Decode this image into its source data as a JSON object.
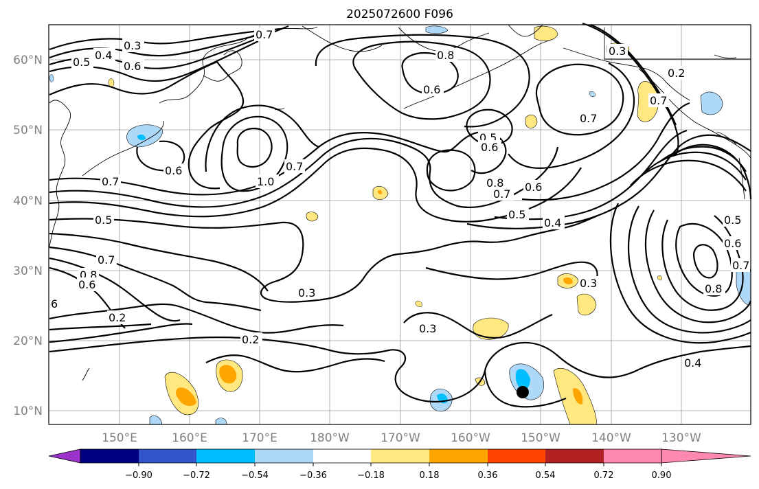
{
  "title": "2025072600 F096",
  "lat_labels": [
    "60°N",
    "50°N",
    "40°N",
    "30°N",
    "20°N",
    "10°N"
  ],
  "lon_labels": [
    "150°E",
    "160°E",
    "170°E",
    "180°W",
    "170°W",
    "160°W",
    "150°W",
    "140°W",
    "130°W"
  ],
  "colorbar": {
    "ticks": [
      "−0.90",
      "−0.72",
      "−0.54",
      "−0.36",
      "−0.18",
      "0.18",
      "0.36",
      "0.54",
      "0.72",
      "0.90"
    ],
    "colors": [
      "#9933cc",
      "#000080",
      "#3355cc",
      "#00bfff",
      "#add8f8",
      "#ffffff",
      "#ffe880",
      "#ffa500",
      "#ff4500",
      "#b22222",
      "#ff88b0"
    ]
  },
  "contour_labels": [
    "0.3",
    "0.4",
    "0.5",
    "0.6",
    "0.7",
    "0.7",
    "1.0",
    "0.6",
    "0.7",
    "0.5",
    "0.6",
    "0.6",
    "0.8",
    "0.7",
    "0.8",
    "0.7",
    "0.6",
    "0.5",
    "0.4",
    "0.3",
    "0.3",
    "0.3",
    "0.2",
    "0.2",
    "0.3",
    "0.4",
    "0.8",
    "0.7",
    "0.6",
    "0.5",
    "0.2",
    "0.7",
    "0.8",
    "0.5",
    "0.6",
    "0.7",
    "6"
  ],
  "marker": {
    "lat": 12.6,
    "lon": -152.5,
    "color": "#000000"
  }
}
